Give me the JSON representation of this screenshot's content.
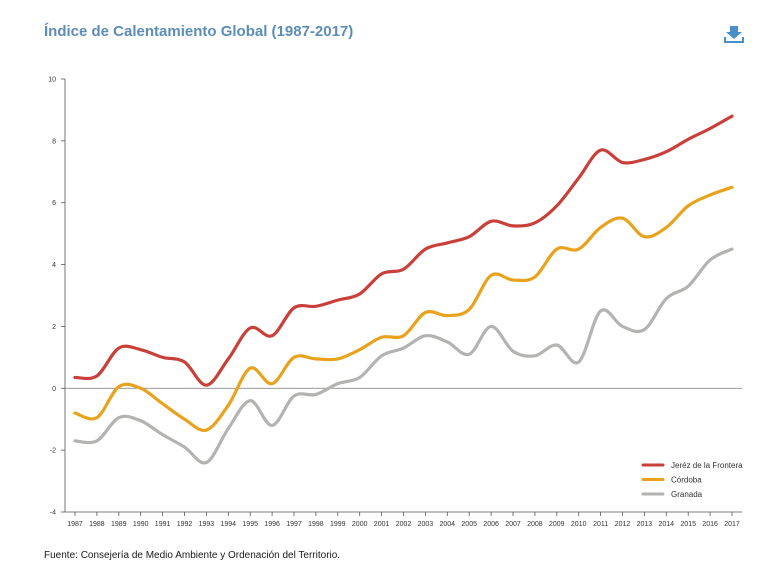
{
  "title": "Índice de Calentamiento Global (1987-2017)",
  "source": "Fuente: Consejería de Medio Ambiente y Ordenación del Territorio.",
  "download_icon": "download-icon",
  "colors": {
    "title": "#5b8db8",
    "icon": "#4a90c8"
  },
  "chart_data": {
    "type": "line",
    "title": "",
    "xlabel": "",
    "ylabel": "",
    "ylim": [
      -4,
      10
    ],
    "yticks": [
      "-4",
      "-2",
      "0",
      "2",
      "4",
      "6",
      "8",
      "10"
    ],
    "categories": [
      "1987",
      "1988",
      "1989",
      "1990",
      "1991",
      "1992",
      "1993",
      "1994",
      "1995",
      "1996",
      "1997",
      "1998",
      "1999",
      "2000",
      "2001",
      "2002",
      "2003",
      "2004",
      "2005",
      "2006",
      "2007",
      "2008",
      "2009",
      "2010",
      "2011",
      "2012",
      "2013",
      "2014",
      "2015",
      "2016",
      "2017"
    ],
    "grid": false,
    "zero_line": true,
    "legend_position": "bottom-right",
    "series": [
      {
        "name": "Jeréz de la Frontera",
        "color": "#c9403a",
        "values": [
          0.35,
          0.4,
          1.3,
          1.25,
          1.0,
          0.85,
          0.1,
          0.95,
          1.95,
          1.7,
          2.6,
          2.65,
          2.85,
          3.05,
          3.7,
          3.85,
          4.5,
          4.7,
          4.9,
          5.4,
          5.25,
          5.35,
          5.9,
          6.8,
          7.7,
          7.3,
          7.4,
          7.65,
          8.05,
          8.4,
          8.8
        ]
      },
      {
        "name": "Córdoba",
        "color": "#e8a21c",
        "values": [
          -0.8,
          -0.95,
          0.05,
          0.0,
          -0.5,
          -1.0,
          -1.35,
          -0.55,
          0.65,
          0.15,
          1.0,
          0.95,
          0.95,
          1.25,
          1.65,
          1.7,
          2.45,
          2.35,
          2.55,
          3.65,
          3.5,
          3.6,
          4.5,
          4.5,
          5.2,
          5.5,
          4.9,
          5.2,
          5.9,
          6.25,
          6.5
        ]
      },
      {
        "name": "Granada",
        "color": "#b3b3b1",
        "values": [
          -1.7,
          -1.7,
          -0.95,
          -1.05,
          -1.5,
          -1.9,
          -2.4,
          -1.3,
          -0.4,
          -1.2,
          -0.25,
          -0.2,
          0.15,
          0.35,
          1.05,
          1.3,
          1.7,
          1.5,
          1.1,
          2.0,
          1.2,
          1.05,
          1.4,
          0.85,
          2.5,
          2.0,
          1.9,
          2.9,
          3.3,
          4.15,
          4.5
        ]
      }
    ]
  }
}
